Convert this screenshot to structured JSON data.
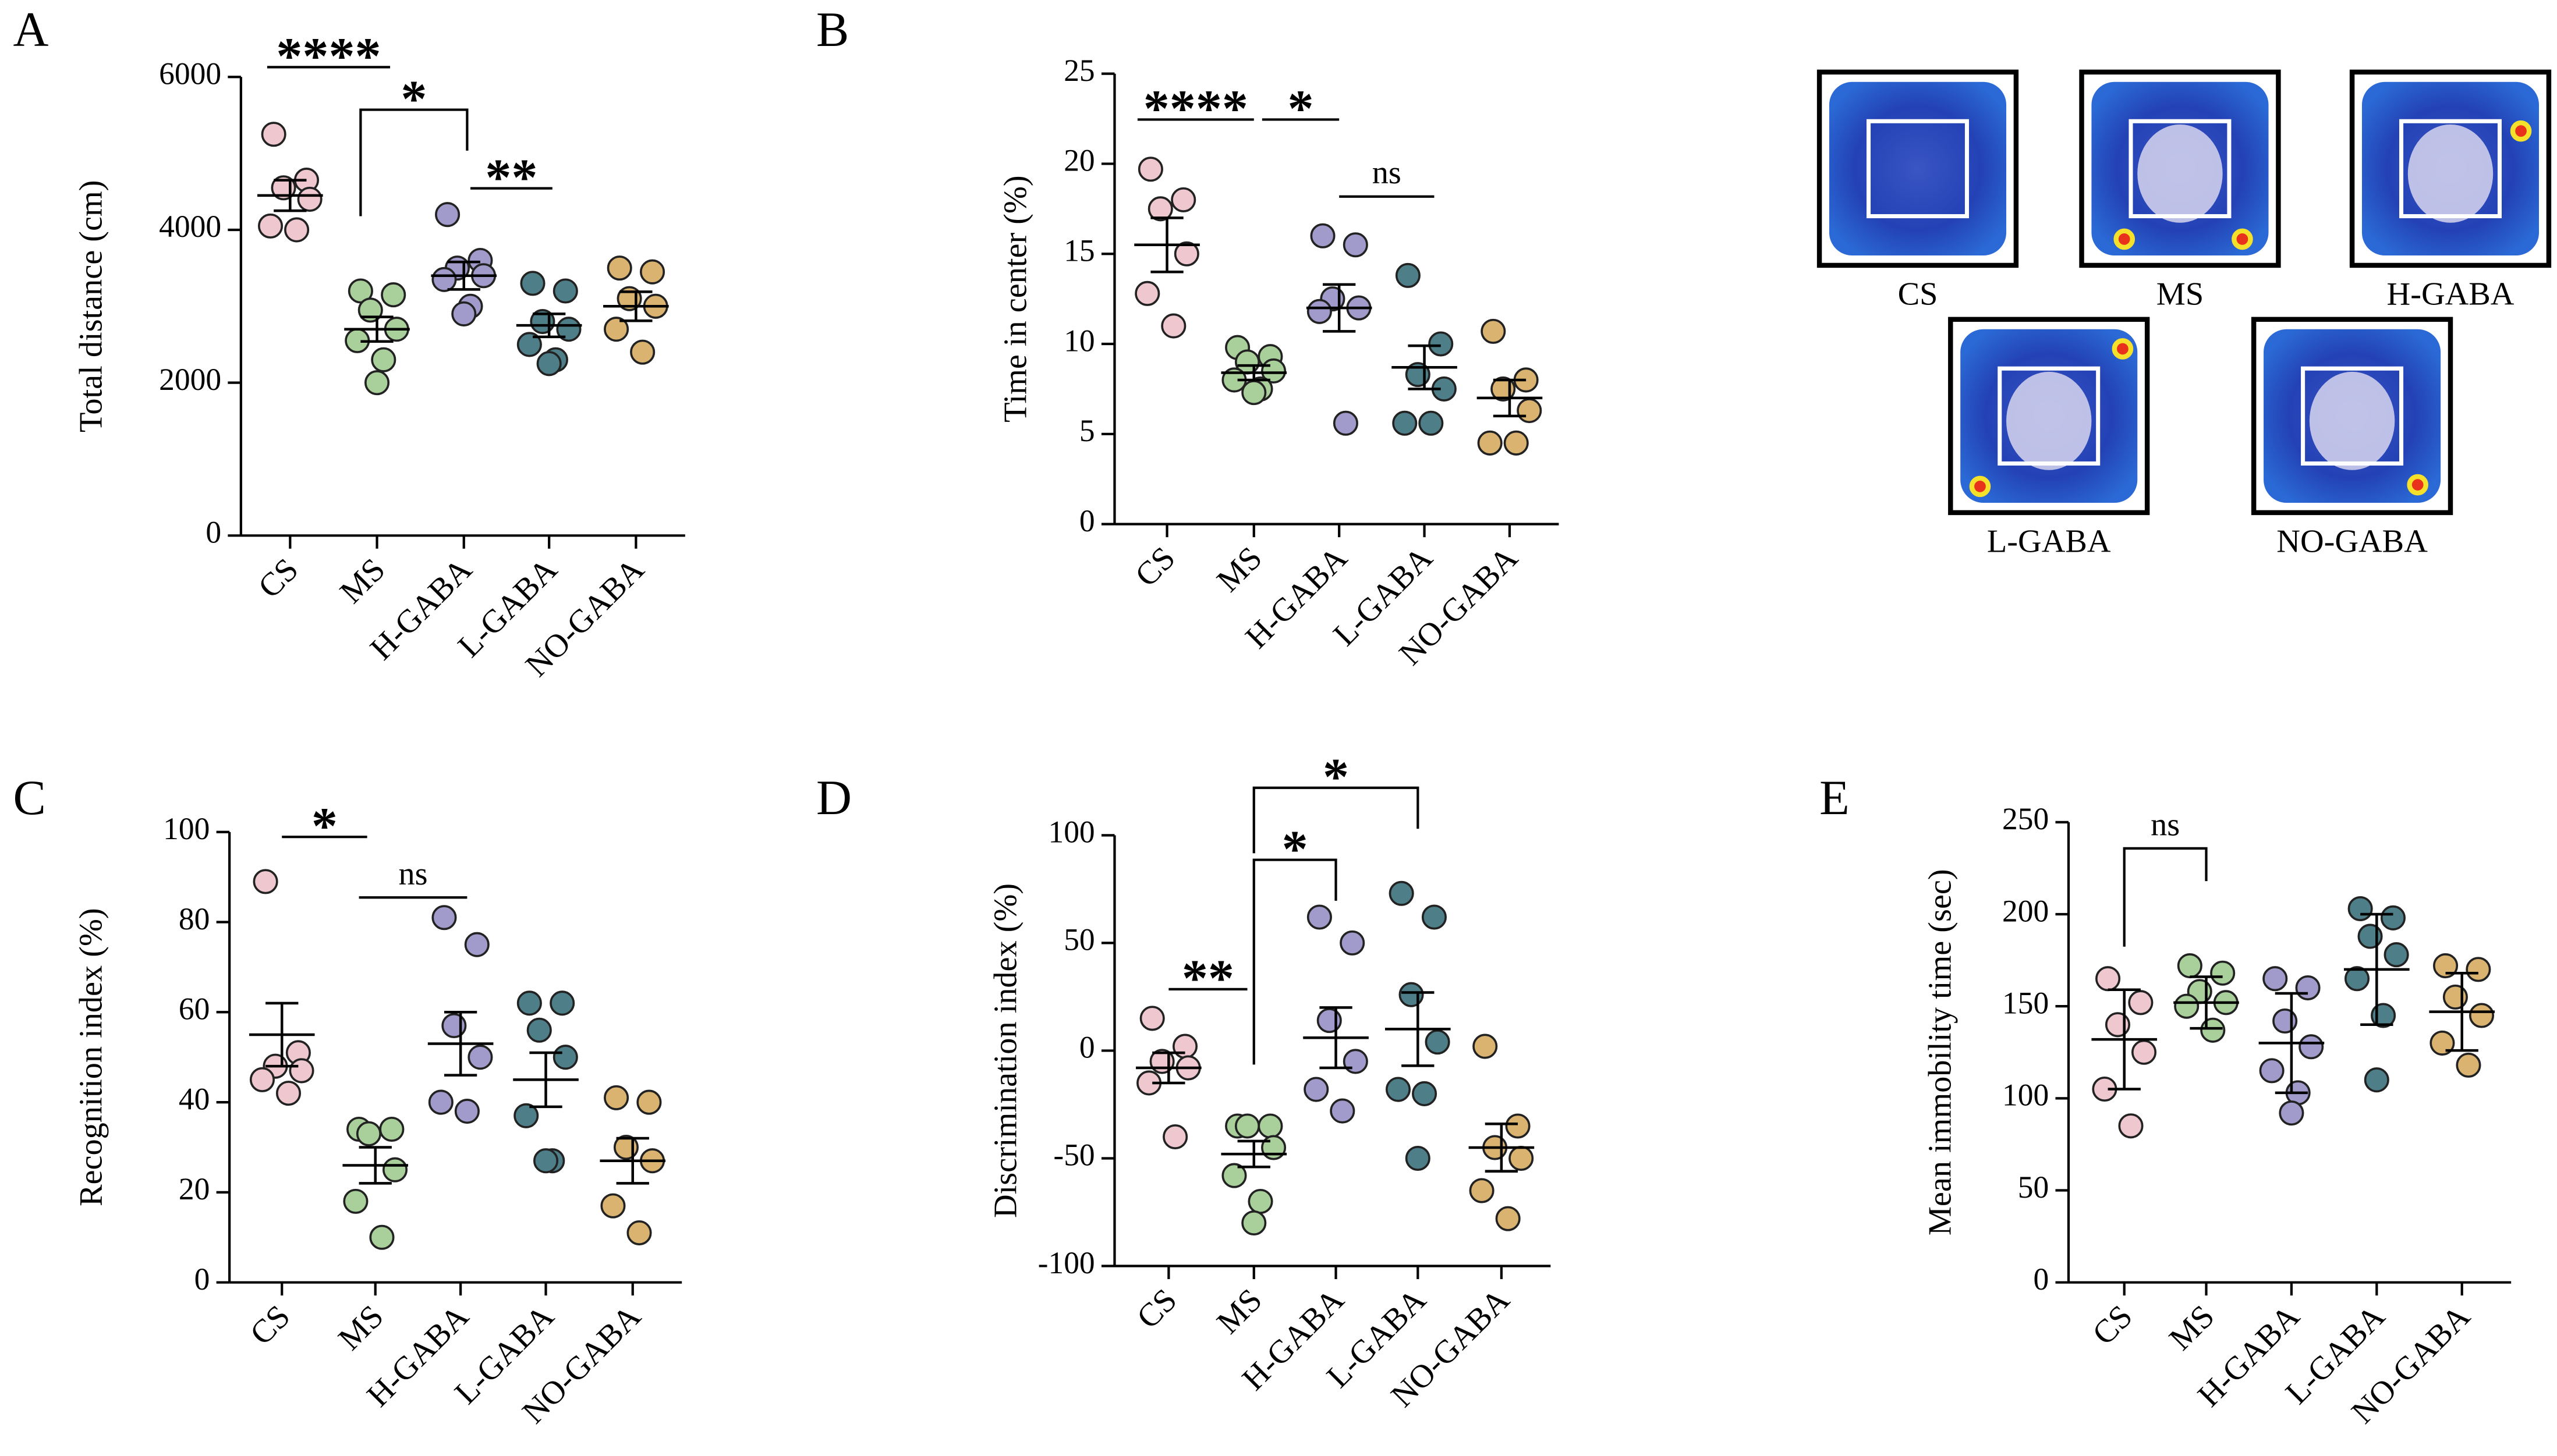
{
  "chart_data": [
    {
      "type": "dot",
      "panel": "A",
      "y_label": "Total distance (cm)",
      "categories": [
        "CS",
        "MS",
        "H-GABA",
        "L-GABA",
        "NO-GABA"
      ],
      "colors": [
        "#efc8cf",
        "#a9cf9b",
        "#a19bcb",
        "#4e7f88",
        "#d9b36f"
      ],
      "points": [
        [
          5250,
          4650,
          4550,
          4400,
          4050,
          4000
        ],
        [
          3200,
          3150,
          2950,
          2700,
          2550,
          2300,
          2000
        ],
        [
          4200,
          3600,
          3500,
          3400,
          3350,
          3000,
          2900
        ],
        [
          3300,
          3200,
          2800,
          2700,
          2500,
          2300,
          2250
        ],
        [
          3500,
          3450,
          3100,
          3000,
          2700,
          2400
        ]
      ],
      "means": [
        4450,
        2700,
        3400,
        2750,
        3000
      ],
      "errors": [
        200,
        160,
        180,
        150,
        190
      ],
      "ylim": [
        0,
        6000
      ],
      "yticks": [
        0,
        2000,
        4000,
        6000
      ],
      "annotations": [
        {
          "text": "****",
          "from": 0,
          "to": 1
        },
        {
          "text": "*",
          "from": 1,
          "to": 2
        },
        {
          "text": "**",
          "from": 2,
          "to": 3
        }
      ]
    },
    {
      "type": "dot",
      "panel": "B",
      "y_label": "Time in center (%)",
      "categories": [
        "CS",
        "MS",
        "H-GABA",
        "L-GABA",
        "NO-GABA"
      ],
      "colors": [
        "#efc8cf",
        "#a9cf9b",
        "#a19bcb",
        "#4e7f88",
        "#d9b36f"
      ],
      "points": [
        [
          19.7,
          18,
          17.5,
          15,
          12.8,
          11
        ],
        [
          9.8,
          9.3,
          9,
          8.5,
          8,
          7.5,
          7.3
        ],
        [
          16,
          15.5,
          12.5,
          12,
          11.8,
          5.6
        ],
        [
          13.8,
          10,
          8.3,
          7.5,
          5.6,
          5.6
        ],
        [
          10.7,
          8,
          7.5,
          6.3,
          4.5,
          4.5
        ]
      ],
      "means": [
        15.5,
        8.4,
        12,
        8.7,
        7
      ],
      "errors": [
        1.5,
        0.4,
        1.3,
        1.2,
        1
      ],
      "ylim": [
        0,
        25
      ],
      "yticks": [
        0,
        5,
        10,
        15,
        20,
        25
      ],
      "annotations": [
        {
          "text": "****",
          "from": 0,
          "to": 1
        },
        {
          "text": "*",
          "from": 1,
          "to": 2
        },
        {
          "text": "ns",
          "from": 2,
          "to": 3
        }
      ]
    },
    {
      "type": "dot",
      "panel": "C",
      "y_label": "Recognition index (%)",
      "categories": [
        "CS",
        "MS",
        "H-GABA",
        "L-GABA",
        "NO-GABA"
      ],
      "colors": [
        "#efc8cf",
        "#a9cf9b",
        "#a19bcb",
        "#4e7f88",
        "#d9b36f"
      ],
      "points": [
        [
          89,
          51,
          48,
          47,
          45,
          42
        ],
        [
          34,
          34,
          33,
          25,
          18,
          10
        ],
        [
          81,
          75,
          57,
          50,
          40,
          38
        ],
        [
          62,
          62,
          56,
          50,
          37,
          27,
          27
        ],
        [
          41,
          40,
          30,
          27,
          17,
          11
        ]
      ],
      "means": [
        55,
        26,
        53,
        45,
        27
      ],
      "errors": [
        7,
        4,
        7,
        6,
        5
      ],
      "ylim": [
        0,
        100
      ],
      "yticks": [
        0,
        20,
        40,
        60,
        80,
        100
      ],
      "annotations": [
        {
          "text": "*",
          "from": 0,
          "to": 1
        },
        {
          "text": "ns",
          "from": 1,
          "to": 2
        }
      ]
    },
    {
      "type": "dot",
      "panel": "D",
      "y_label": "Discrimination index (%)",
      "categories": [
        "CS",
        "MS",
        "H-GABA",
        "L-GABA",
        "NO-GABA"
      ],
      "colors": [
        "#efc8cf",
        "#a9cf9b",
        "#a19bcb",
        "#4e7f88",
        "#d9b36f"
      ],
      "points": [
        [
          15,
          2,
          -5,
          -8,
          -15,
          -40
        ],
        [
          -35,
          -35,
          -35,
          -45,
          -58,
          -70,
          -80
        ],
        [
          62,
          50,
          14,
          -5,
          -18,
          -28
        ],
        [
          73,
          62,
          26,
          4,
          -18,
          -20,
          -50
        ],
        [
          2,
          -35,
          -45,
          -50,
          -65,
          -78
        ]
      ],
      "means": [
        -8,
        -48,
        6,
        10,
        -45
      ],
      "errors": [
        7,
        6,
        14,
        17,
        11
      ],
      "ylim": [
        -100,
        100
      ],
      "yticks": [
        -100,
        -50,
        0,
        50,
        100
      ],
      "annotations": [
        {
          "text": "**",
          "from": 0,
          "to": 1
        },
        {
          "text": "*",
          "from": 1,
          "to": 2
        },
        {
          "text": "*",
          "from": 1,
          "to": 3
        }
      ]
    },
    {
      "type": "dot",
      "panel": "E",
      "y_label": "Mean immobility time (sec)",
      "categories": [
        "CS",
        "MS",
        "H-GABA",
        "L-GABA",
        "NO-GABA"
      ],
      "colors": [
        "#efc8cf",
        "#a9cf9b",
        "#a19bcb",
        "#4e7f88",
        "#d9b36f"
      ],
      "points": [
        [
          165,
          152,
          140,
          125,
          105,
          85
        ],
        [
          172,
          168,
          158,
          152,
          150,
          137
        ],
        [
          165,
          160,
          142,
          128,
          115,
          103,
          92
        ],
        [
          203,
          198,
          188,
          178,
          165,
          145,
          110
        ],
        [
          172,
          170,
          155,
          145,
          130,
          118
        ]
      ],
      "means": [
        132,
        152,
        130,
        170,
        147
      ],
      "errors": [
        27,
        14,
        27,
        30,
        21
      ],
      "ylim": [
        0,
        250
      ],
      "yticks": [
        0,
        50,
        100,
        150,
        200,
        250
      ],
      "annotations": [
        {
          "text": "ns",
          "from": 0,
          "to": 1
        }
      ]
    }
  ],
  "heatmaps": {
    "labels": [
      "CS",
      "MS",
      "H-GABA",
      "L-GABA",
      "NO-GABA"
    ]
  }
}
